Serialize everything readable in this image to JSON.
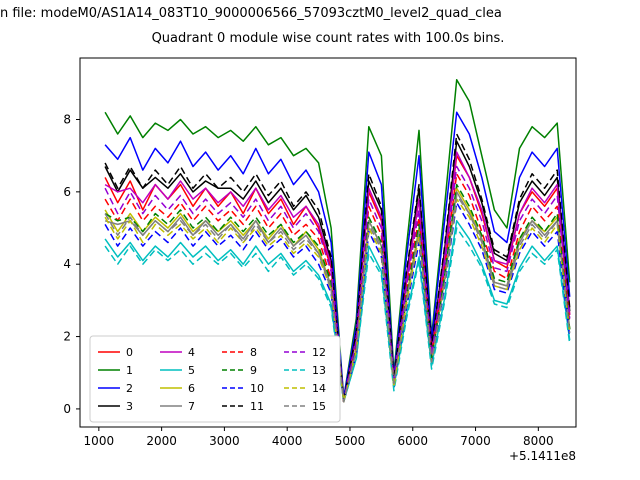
{
  "figure": {
    "top_text": "n file: modeM0/AS1A14_083T10_9000006566_57093cztM0_level2_quad_clea",
    "background": "#ffffff"
  },
  "chart_data": {
    "type": "line",
    "title": "Quadrant 0 module wise count rates with 100.0s bins.",
    "xlabel": "",
    "ylabel": "",
    "x_offset_label": "+5.1411e8",
    "xlim": [
      700,
      8600
    ],
    "ylim": [
      -0.5,
      9.7
    ],
    "xticks": [
      1000,
      2000,
      3000,
      4000,
      5000,
      6000,
      7000,
      8000
    ],
    "yticks": [
      0,
      2,
      4,
      6,
      8
    ],
    "grid": false,
    "line_width": 1.5,
    "legend": {
      "position": "lower left",
      "columns": 4,
      "rows": 4
    },
    "x": [
      1100,
      1300,
      1500,
      1700,
      1900,
      2100,
      2300,
      2500,
      2700,
      2900,
      3100,
      3300,
      3500,
      3700,
      3900,
      4100,
      4300,
      4500,
      4700,
      4900,
      5100,
      5300,
      5500,
      5700,
      5900,
      6100,
      6300,
      6500,
      6700,
      6900,
      7100,
      7300,
      7500,
      7700,
      7900,
      8100,
      8300,
      8500
    ],
    "series": [
      {
        "name": "0",
        "color": "#ff0000",
        "style": "solid",
        "values": [
          6.4,
          5.7,
          6.3,
          5.5,
          6.2,
          5.8,
          6.2,
          5.6,
          6.1,
          5.6,
          6.0,
          5.4,
          6.1,
          5.4,
          5.8,
          5.1,
          5.6,
          5.0,
          3.9,
          0.2,
          2.0,
          6.0,
          5.2,
          0.8,
          3.5,
          5.8,
          1.6,
          4.1,
          7.0,
          6.4,
          5.4,
          4.1,
          3.9,
          5.4,
          6.0,
          5.6,
          6.1,
          2.6
        ]
      },
      {
        "name": "1",
        "color": "#008000",
        "style": "solid",
        "values": [
          8.2,
          7.6,
          8.1,
          7.5,
          7.9,
          7.7,
          8.0,
          7.6,
          7.8,
          7.5,
          7.7,
          7.4,
          7.8,
          7.3,
          7.5,
          7.0,
          7.2,
          6.8,
          5.0,
          0.3,
          2.5,
          7.8,
          7.0,
          1.0,
          4.5,
          7.7,
          2.0,
          5.5,
          9.1,
          8.5,
          7.0,
          5.5,
          5.0,
          7.2,
          7.8,
          7.5,
          7.9,
          3.5
        ]
      },
      {
        "name": "2",
        "color": "#0000ff",
        "style": "solid",
        "values": [
          7.3,
          6.9,
          7.5,
          6.6,
          7.2,
          6.8,
          7.4,
          6.7,
          7.1,
          6.6,
          7.0,
          6.5,
          7.2,
          6.5,
          6.9,
          6.2,
          6.6,
          6.0,
          4.6,
          0.3,
          2.3,
          7.1,
          6.2,
          0.9,
          4.2,
          7.0,
          1.9,
          5.1,
          8.2,
          7.6,
          6.4,
          4.9,
          4.6,
          6.4,
          7.1,
          6.7,
          7.2,
          3.1
        ]
      },
      {
        "name": "3",
        "color": "#000000",
        "style": "solid",
        "values": [
          6.7,
          6.0,
          6.6,
          6.1,
          6.4,
          6.1,
          6.5,
          6.0,
          6.3,
          6.1,
          6.1,
          5.8,
          6.3,
          5.7,
          6.1,
          5.5,
          5.9,
          5.3,
          4.1,
          0.2,
          2.1,
          6.3,
          5.5,
          0.8,
          3.7,
          6.1,
          1.7,
          4.3,
          7.4,
          6.7,
          5.7,
          4.3,
          4.1,
          5.7,
          6.3,
          5.9,
          6.4,
          2.7
        ]
      },
      {
        "name": "4",
        "color": "#bf00bf",
        "style": "solid",
        "values": [
          6.2,
          6.0,
          6.1,
          5.7,
          6.2,
          5.8,
          6.3,
          5.8,
          6.1,
          5.7,
          6.0,
          5.6,
          6.1,
          5.5,
          5.9,
          5.3,
          5.6,
          5.1,
          4.0,
          0.2,
          2.0,
          6.1,
          5.3,
          0.8,
          3.6,
          5.8,
          1.6,
          4.1,
          7.1,
          6.4,
          5.5,
          4.1,
          4.0,
          5.4,
          6.1,
          5.7,
          6.2,
          2.6
        ]
      },
      {
        "name": "5",
        "color": "#00bfbf",
        "style": "solid",
        "values": [
          4.7,
          4.2,
          4.6,
          4.1,
          4.5,
          4.2,
          4.6,
          4.2,
          4.5,
          4.1,
          4.4,
          4.0,
          4.5,
          4.0,
          4.3,
          3.8,
          4.1,
          3.7,
          2.9,
          0.2,
          1.4,
          4.5,
          3.8,
          0.6,
          2.6,
          4.2,
          1.2,
          3.0,
          5.2,
          4.7,
          4.0,
          3.0,
          2.9,
          3.9,
          4.5,
          4.1,
          4.5,
          1.9
        ]
      },
      {
        "name": "6",
        "color": "#bfbf00",
        "style": "solid",
        "values": [
          5.5,
          4.9,
          5.4,
          4.9,
          5.3,
          5.0,
          5.4,
          4.9,
          5.2,
          4.9,
          5.2,
          4.8,
          5.2,
          4.7,
          5.1,
          4.5,
          4.9,
          4.4,
          3.4,
          0.2,
          1.7,
          5.2,
          4.5,
          0.7,
          3.1,
          5.0,
          1.4,
          3.5,
          6.1,
          5.5,
          4.7,
          3.5,
          3.4,
          4.7,
          5.2,
          4.9,
          5.3,
          2.2
        ]
      },
      {
        "name": "7",
        "color": "#808080",
        "style": "solid",
        "values": [
          5.2,
          5.1,
          5.2,
          4.8,
          5.2,
          4.9,
          5.3,
          4.8,
          5.2,
          4.8,
          5.1,
          4.7,
          5.2,
          4.6,
          5.0,
          4.5,
          4.8,
          4.3,
          3.4,
          0.2,
          1.6,
          5.2,
          4.5,
          0.7,
          3.0,
          4.9,
          1.4,
          3.5,
          6.0,
          5.4,
          4.7,
          3.5,
          3.4,
          4.6,
          5.2,
          4.8,
          5.2,
          2.2
        ]
      },
      {
        "name": "8",
        "color": "#ff0000",
        "style": "dashed",
        "values": [
          5.8,
          5.2,
          5.8,
          5.2,
          5.6,
          5.3,
          5.7,
          5.2,
          5.6,
          5.2,
          5.5,
          5.1,
          5.6,
          5.0,
          5.4,
          4.8,
          5.1,
          4.7,
          3.6,
          0.2,
          1.8,
          5.6,
          4.8,
          0.7,
          3.3,
          5.3,
          1.5,
          3.8,
          6.5,
          5.9,
          4.9,
          3.8,
          3.6,
          4.9,
          5.6,
          5.2,
          5.6,
          2.4
        ]
      },
      {
        "name": "9",
        "color": "#008000",
        "style": "dashed",
        "values": [
          5.4,
          5.2,
          5.3,
          4.9,
          5.4,
          5.1,
          5.5,
          5.0,
          5.3,
          4.9,
          5.3,
          4.9,
          5.3,
          4.8,
          5.1,
          4.6,
          4.9,
          4.5,
          3.5,
          0.2,
          1.7,
          5.3,
          4.6,
          0.7,
          3.1,
          5.1,
          1.4,
          3.6,
          6.2,
          5.6,
          4.8,
          3.6,
          3.5,
          4.7,
          5.3,
          4.9,
          5.4,
          2.2
        ]
      },
      {
        "name": "10",
        "color": "#0000ff",
        "style": "dashed",
        "values": [
          5.1,
          4.5,
          5.0,
          4.5,
          4.9,
          4.6,
          5.0,
          4.5,
          4.9,
          4.5,
          4.8,
          4.4,
          4.9,
          4.4,
          4.7,
          4.2,
          4.5,
          4.0,
          3.2,
          0.2,
          1.5,
          4.9,
          4.2,
          0.6,
          2.8,
          4.6,
          1.3,
          3.3,
          5.7,
          5.1,
          4.4,
          3.3,
          3.2,
          4.3,
          4.9,
          4.5,
          4.9,
          2.0
        ]
      },
      {
        "name": "11",
        "color": "#000000",
        "style": "dashed",
        "values": [
          6.8,
          6.1,
          6.7,
          6.1,
          6.6,
          6.2,
          6.7,
          6.1,
          6.5,
          6.1,
          6.4,
          6.0,
          6.5,
          5.9,
          6.3,
          5.6,
          6.0,
          5.5,
          4.2,
          0.2,
          2.1,
          6.5,
          5.6,
          0.8,
          3.8,
          6.2,
          1.7,
          4.4,
          7.6,
          6.9,
          5.8,
          4.4,
          4.2,
          5.8,
          6.5,
          6.1,
          6.6,
          2.8
        ]
      },
      {
        "name": "12",
        "color": "#9400d3",
        "style": "dashed",
        "values": [
          6.1,
          5.4,
          6.0,
          5.4,
          5.9,
          5.5,
          5.9,
          5.4,
          5.8,
          5.4,
          5.7,
          5.3,
          5.8,
          5.2,
          5.6,
          5.0,
          5.4,
          4.9,
          3.8,
          0.2,
          1.9,
          5.8,
          5.0,
          0.7,
          3.4,
          5.5,
          1.5,
          3.9,
          6.7,
          6.1,
          5.2,
          3.9,
          3.8,
          5.2,
          5.8,
          5.4,
          5.9,
          2.5
        ]
      },
      {
        "name": "13",
        "color": "#00bfbf",
        "style": "dashed",
        "values": [
          4.5,
          4.0,
          4.5,
          4.0,
          4.4,
          4.1,
          4.4,
          4.0,
          4.3,
          4.0,
          4.3,
          3.9,
          4.3,
          3.8,
          4.2,
          3.7,
          4.0,
          3.6,
          2.8,
          0.2,
          1.4,
          4.3,
          3.7,
          0.5,
          2.5,
          4.1,
          1.1,
          2.9,
          5.0,
          4.5,
          3.9,
          2.9,
          2.8,
          3.8,
          4.3,
          4.0,
          4.4,
          1.8
        ]
      },
      {
        "name": "14",
        "color": "#bfbf00",
        "style": "dashed",
        "values": [
          5.3,
          4.7,
          5.2,
          4.6,
          5.1,
          4.8,
          5.1,
          4.7,
          5.0,
          4.6,
          5.0,
          4.6,
          5.0,
          4.5,
          4.8,
          4.3,
          4.6,
          4.2,
          3.3,
          0.2,
          1.6,
          5.0,
          4.3,
          0.6,
          2.9,
          4.8,
          1.3,
          3.4,
          5.8,
          5.3,
          4.5,
          3.4,
          3.3,
          4.4,
          5.0,
          4.6,
          5.1,
          2.1
        ]
      },
      {
        "name": "15",
        "color": "#808080",
        "style": "dashed",
        "values": [
          5.4,
          4.8,
          5.3,
          4.8,
          5.2,
          4.9,
          5.2,
          4.8,
          5.1,
          4.7,
          5.1,
          4.6,
          5.1,
          4.6,
          4.9,
          4.4,
          4.7,
          4.3,
          3.3,
          0.2,
          1.6,
          5.1,
          4.4,
          0.7,
          3.0,
          4.9,
          1.3,
          3.4,
          5.9,
          5.4,
          4.6,
          3.4,
          3.3,
          4.5,
          5.1,
          4.7,
          5.2,
          2.1
        ]
      }
    ]
  }
}
